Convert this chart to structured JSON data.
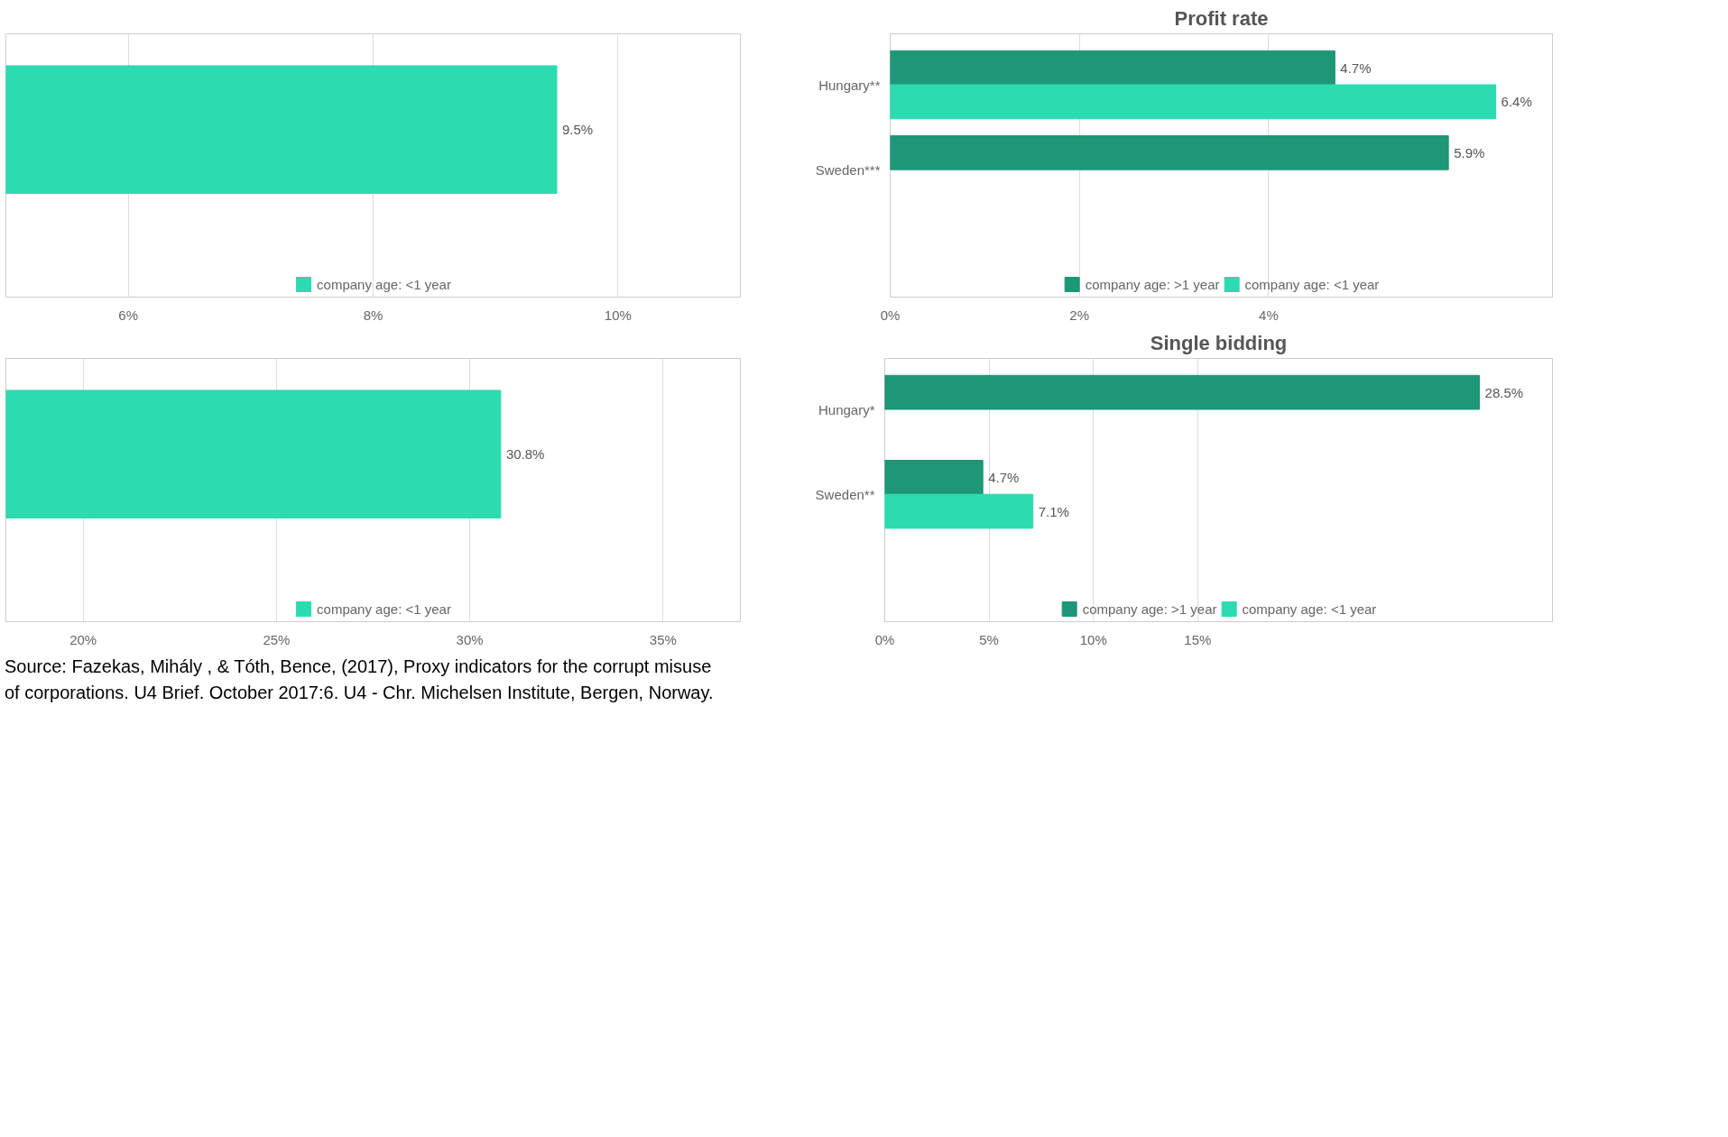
{
  "chart_data": [
    {
      "type": "bar",
      "orientation": "horizontal",
      "categories": [
        null
      ],
      "series": [
        {
          "name": "company age: <1 year",
          "color": "#2cdbb0",
          "values": [
            9.5
          ],
          "value_labels": [
            "9.5%"
          ]
        }
      ],
      "xlim": [
        5,
        11
      ],
      "xticks": [
        {
          "value": 6,
          "label": "6%"
        },
        {
          "value": 8,
          "label": "8%"
        },
        {
          "value": 10,
          "label": "10%"
        }
      ],
      "grid": "x",
      "legend": "bottom"
    },
    {
      "type": "bar",
      "orientation": "horizontal",
      "title": "Profit rate",
      "categories": [
        "Hungary**",
        "Sweden***"
      ],
      "series": [
        {
          "name": "company age: >1 year",
          "color": "#1e9678",
          "values": [
            4.7,
            5.9
          ],
          "value_labels": [
            "4.7%",
            "5.9%"
          ]
        },
        {
          "name": "company age: <1 year",
          "color": "#2cdbb0",
          "values": [
            6.4,
            null
          ],
          "value_labels": [
            "6.4%",
            null
          ]
        }
      ],
      "xlim": [
        0,
        7
      ],
      "xticks": [
        {
          "value": 0,
          "label": "0%"
        },
        {
          "value": 2,
          "label": "2%"
        },
        {
          "value": 4,
          "label": "4%"
        }
      ],
      "grid": "x",
      "legend": "bottom"
    },
    {
      "type": "bar",
      "orientation": "horizontal",
      "categories": [
        null
      ],
      "series": [
        {
          "name": "company age: <1 year",
          "color": "#2cdbb0",
          "values": [
            30.8
          ],
          "value_labels": [
            "30.8%"
          ]
        }
      ],
      "xlim": [
        18,
        37
      ],
      "xticks": [
        {
          "value": 20,
          "label": "20%"
        },
        {
          "value": 25,
          "label": "25%"
        },
        {
          "value": 30,
          "label": "30%"
        },
        {
          "value": 35,
          "label": "35%"
        }
      ],
      "grid": "x",
      "legend": "bottom",
      "annotations": [
        "Source: Fazekas, Mihály , & Tóth, Bence, (2017), Proxy indicators for the corrupt misuse of corporations. U4 Brief. October 2017:6. U4 - Chr. Michelsen Institute, Bergen, Norway."
      ]
    },
    {
      "type": "bar",
      "orientation": "horizontal",
      "title": "Single bidding",
      "categories": [
        "Hungary*",
        "Sweden**"
      ],
      "series": [
        {
          "name": "company age: >1 year",
          "color": "#1e9678",
          "values": [
            28.5,
            4.7
          ],
          "value_labels": [
            "28.5%",
            "4.7%"
          ]
        },
        {
          "name": "company age: <1 year",
          "color": "#2cdbb0",
          "values": [
            null,
            7.1
          ],
          "value_labels": [
            null,
            "7.1%"
          ]
        }
      ],
      "xlim": [
        0,
        32
      ],
      "xticks": [
        {
          "value": 0,
          "label": "0%"
        },
        {
          "value": 5,
          "label": "5%"
        },
        {
          "value": 10,
          "label": "10%"
        },
        {
          "value": 15,
          "label": "15%"
        }
      ],
      "grid": "x",
      "legend": "bottom"
    }
  ]
}
